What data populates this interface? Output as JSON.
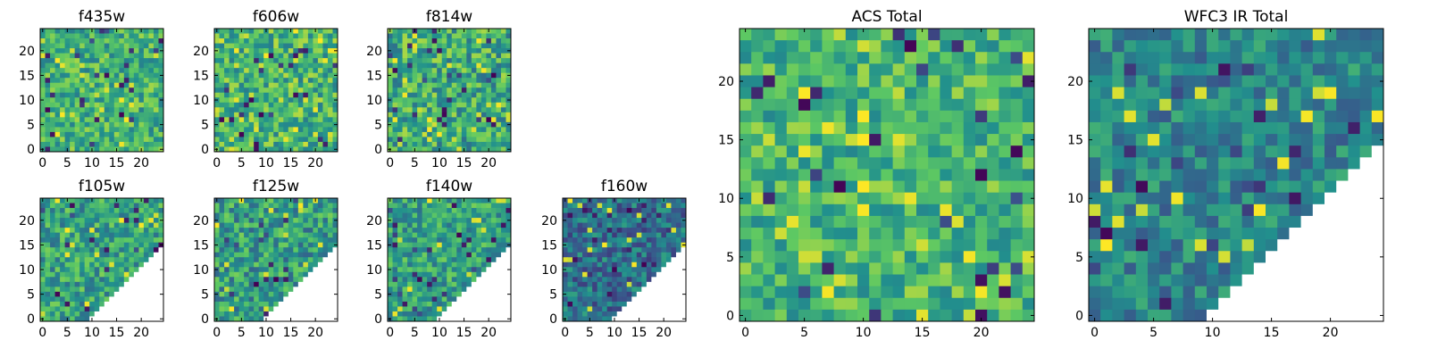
{
  "figure": {
    "colormap": [
      "#440154",
      "#3b528b",
      "#21908d",
      "#5dc863",
      "#fde725"
    ],
    "no_data_color": "#ffffff"
  },
  "chart_data": [
    {
      "id": "f435w",
      "type": "heatmap",
      "title": "f435w",
      "grid_size": 25,
      "coverage": "full",
      "seed": 101,
      "palette_bias": 0.64,
      "spread": 0.22,
      "xticks": [
        "0",
        "5",
        "10",
        "15",
        "20"
      ],
      "yticks": [
        "0",
        "5",
        "10",
        "15",
        "20"
      ]
    },
    {
      "id": "f606w",
      "type": "heatmap",
      "title": "f606w",
      "grid_size": 25,
      "coverage": "full",
      "seed": 202,
      "palette_bias": 0.66,
      "spread": 0.24,
      "xticks": [
        "0",
        "5",
        "10",
        "15",
        "20"
      ],
      "yticks": [
        "0",
        "5",
        "10",
        "15",
        "20"
      ]
    },
    {
      "id": "f814w",
      "type": "heatmap",
      "title": "f814w",
      "grid_size": 25,
      "coverage": "full",
      "seed": 303,
      "palette_bias": 0.62,
      "spread": 0.25,
      "xticks": [
        "0",
        "5",
        "10",
        "15",
        "20"
      ],
      "yticks": [
        "0",
        "5",
        "10",
        "15",
        "20"
      ]
    },
    {
      "id": "f105w",
      "type": "heatmap",
      "title": "f105w",
      "grid_size": 25,
      "coverage": "upper-left-triangle",
      "seed": 404,
      "palette_bias": 0.58,
      "spread": 0.22,
      "xticks": [
        "0",
        "5",
        "10",
        "15",
        "20"
      ],
      "yticks": [
        "0",
        "5",
        "10",
        "15",
        "20"
      ]
    },
    {
      "id": "f125w",
      "type": "heatmap",
      "title": "f125w",
      "grid_size": 25,
      "coverage": "upper-left-triangle",
      "seed": 505,
      "palette_bias": 0.56,
      "spread": 0.24,
      "xticks": [
        "0",
        "5",
        "10",
        "15",
        "20"
      ],
      "yticks": [
        "0",
        "5",
        "10",
        "15",
        "20"
      ]
    },
    {
      "id": "f140w",
      "type": "heatmap",
      "title": "f140w",
      "grid_size": 25,
      "coverage": "upper-left-triangle",
      "seed": 606,
      "palette_bias": 0.58,
      "spread": 0.21,
      "xticks": [
        "0",
        "5",
        "10",
        "15",
        "20"
      ],
      "yticks": [
        "0",
        "5",
        "10",
        "15",
        "20"
      ]
    },
    {
      "id": "f160w",
      "type": "heatmap",
      "title": "f160w",
      "grid_size": 25,
      "coverage": "upper-left-triangle",
      "seed": 707,
      "palette_bias": 0.38,
      "spread": 0.2,
      "xticks": [
        "0",
        "5",
        "10",
        "15",
        "20"
      ],
      "yticks": [
        "0",
        "5",
        "10",
        "15",
        "20"
      ]
    },
    {
      "id": "acs-total",
      "type": "heatmap",
      "title": "ACS Total",
      "grid_size": 25,
      "coverage": "full",
      "seed": 808,
      "palette_bias": 0.66,
      "spread": 0.2,
      "xticks": [
        "0",
        "5",
        "10",
        "15",
        "20"
      ],
      "yticks": [
        "0",
        "5",
        "10",
        "15",
        "20"
      ]
    },
    {
      "id": "wfc3-ir-total",
      "type": "heatmap",
      "title": "WFC3 IR Total",
      "grid_size": 25,
      "coverage": "upper-left-triangle",
      "seed": 909,
      "palette_bias": 0.46,
      "spread": 0.18,
      "xticks": [
        "0",
        "5",
        "10",
        "15",
        "20"
      ],
      "yticks": [
        "0",
        "5",
        "10",
        "15",
        "20"
      ]
    }
  ]
}
